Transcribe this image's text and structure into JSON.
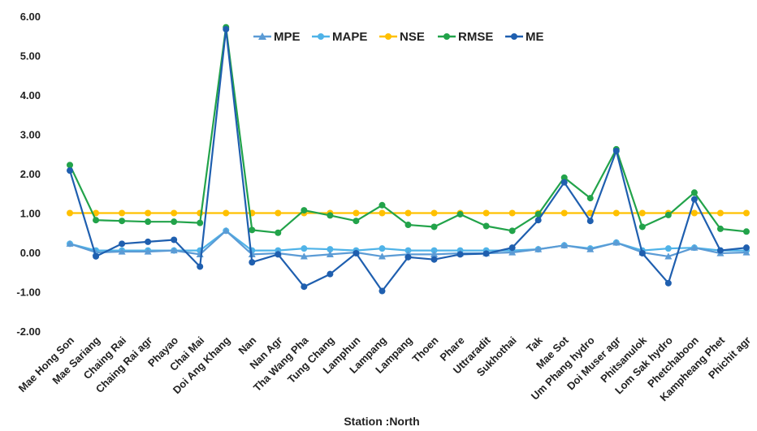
{
  "chart_data": {
    "type": "line",
    "title": "",
    "xlabel": "Station :North",
    "ylabel": "",
    "ylim": [
      -2.0,
      6.0
    ],
    "yticks": [
      "-2.00",
      "-1.00",
      "0.00",
      "1.00",
      "2.00",
      "3.00",
      "4.00",
      "5.00",
      "6.00"
    ],
    "grid": false,
    "legend": "top",
    "categories": [
      "Mae Hong Son",
      "Mae Sariang",
      "Chaing Rai",
      "Chaing Rai agr",
      "Phayao",
      "Chai Mai",
      "Doi Ang Khang",
      "Nan",
      "Nan Agr",
      "Tha Wang Pha",
      "Tung Chang",
      "Lamphun",
      "Lampang",
      "Lampang",
      "Thoen",
      "Phare",
      "Uttraradit",
      "Sukhothai",
      "Tak",
      "Mae Sot",
      "Um Phang hydro",
      "Doi Muser agr",
      "Phitsanulok",
      "Lom Sak hydro",
      "Phetchaboon",
      "Kampheang Phet",
      "Phichit agr"
    ],
    "series": [
      {
        "name": "MPE",
        "color": "#5B9BD5",
        "marker": "triangle",
        "values": [
          0.22,
          0.0,
          0.02,
          0.02,
          0.05,
          -0.05,
          0.55,
          -0.05,
          -0.02,
          -0.1,
          -0.05,
          0.0,
          -0.1,
          -0.05,
          -0.05,
          -0.02,
          -0.02,
          0.0,
          0.08,
          0.18,
          0.08,
          0.25,
          0.0,
          -0.1,
          0.12,
          -0.02,
          0.0
        ]
      },
      {
        "name": "MAPE",
        "color": "#4FB3E8",
        "marker": "circle",
        "values": [
          0.22,
          0.05,
          0.05,
          0.05,
          0.05,
          0.05,
          0.55,
          0.05,
          0.05,
          0.1,
          0.08,
          0.05,
          0.1,
          0.05,
          0.05,
          0.05,
          0.05,
          0.05,
          0.08,
          0.18,
          0.1,
          0.25,
          0.05,
          0.1,
          0.12,
          0.05,
          0.05
        ]
      },
      {
        "name": "NSE",
        "color": "#FFC000",
        "marker": "circle",
        "values": [
          1.0,
          1.0,
          1.0,
          1.0,
          1.0,
          1.0,
          1.0,
          1.0,
          1.0,
          1.0,
          1.0,
          1.0,
          1.0,
          1.0,
          1.0,
          1.0,
          1.0,
          1.0,
          1.0,
          1.0,
          1.0,
          1.0,
          1.0,
          1.0,
          1.0,
          1.0,
          1.0
        ]
      },
      {
        "name": "RMSE",
        "color": "#22A34A",
        "marker": "circle",
        "values": [
          2.22,
          0.82,
          0.8,
          0.78,
          0.78,
          0.75,
          5.72,
          0.57,
          0.5,
          1.07,
          0.94,
          0.8,
          1.2,
          0.7,
          0.65,
          0.97,
          0.67,
          0.55,
          0.97,
          1.9,
          1.38,
          2.62,
          0.65,
          0.95,
          1.52,
          0.6,
          0.53
        ]
      },
      {
        "name": "ME",
        "color": "#1F5FAF",
        "marker": "circle",
        "values": [
          2.08,
          -0.1,
          0.22,
          0.27,
          0.32,
          -0.36,
          5.67,
          -0.25,
          -0.05,
          -0.87,
          -0.55,
          -0.02,
          -0.98,
          -0.12,
          -0.18,
          -0.05,
          -0.03,
          0.12,
          0.82,
          1.78,
          0.8,
          2.58,
          -0.02,
          -0.78,
          1.35,
          0.05,
          0.12
        ]
      }
    ]
  }
}
